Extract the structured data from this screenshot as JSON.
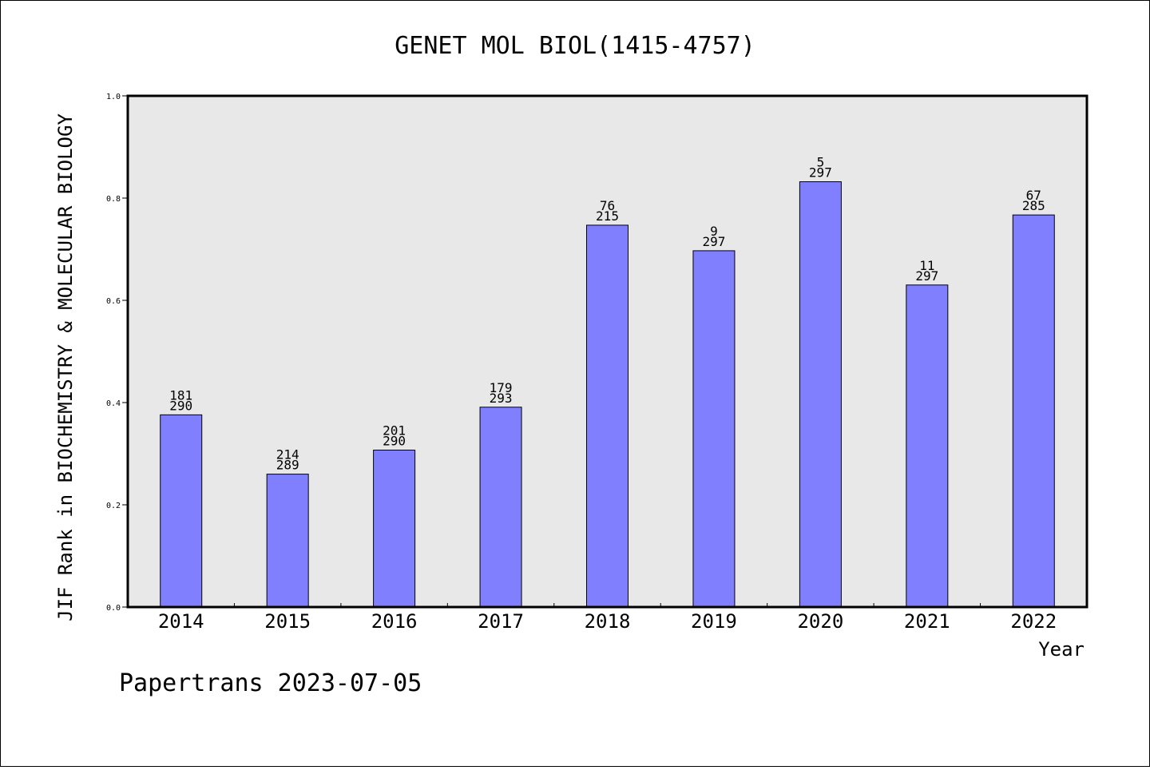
{
  "chart_data": {
    "type": "bar",
    "title": "GENET MOL BIOL(1415-4757)",
    "xlabel": "Year",
    "ylabel": "JIF Rank in BIOCHEMISTRY & MOLECULAR BIOLOGY",
    "ylim": [
      0,
      1.0
    ],
    "yticks": [
      "0.0",
      "0.2",
      "0.4",
      "0.6",
      "0.8",
      "1.0"
    ],
    "categories": [
      "2014",
      "2015",
      "2016",
      "2017",
      "2018",
      "2019",
      "2020",
      "2021",
      "2022"
    ],
    "values": [
      0.376,
      0.26,
      0.307,
      0.391,
      0.747,
      0.697,
      0.832,
      0.63,
      0.767
    ],
    "rank": [
      "181",
      "214",
      "201",
      "179",
      "76",
      "9",
      "5",
      "11",
      "67"
    ],
    "total": [
      "290",
      "289",
      "290",
      "293",
      "215",
      "297",
      "297",
      "297",
      "285"
    ],
    "bar_color": "#8080ff",
    "plot_background": "#e8e8e8",
    "grid": false,
    "legend": "none"
  },
  "footer": {
    "credit": "Papertrans 2023-07-05"
  }
}
